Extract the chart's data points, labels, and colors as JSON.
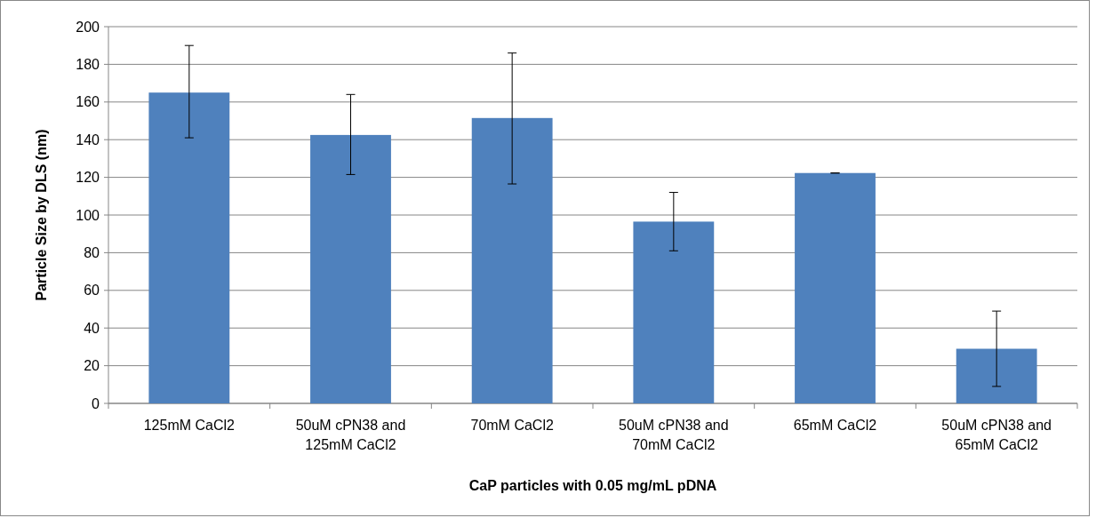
{
  "chart_data": {
    "type": "bar",
    "xlabel": "CaP particles with 0.05 mg/mL pDNA",
    "ylabel": "Particle Size by DLS (nm)",
    "categories": [
      "125mM CaCl2",
      "50uM cPN38 and 125mM CaCl2",
      "70mM CaCl2",
      "50uM cPN38 and 70mM CaCl2",
      "65mM CaCl2",
      "50uM cPN38 and 65mM CaCl2"
    ],
    "values": [
      165,
      142.5,
      151.5,
      96.5,
      122.3,
      29
    ],
    "errors": [
      [
        141,
        190
      ],
      [
        121.5,
        164
      ],
      [
        116.5,
        186
      ],
      [
        81,
        112
      ],
      0,
      [
        9,
        49
      ]
    ],
    "color": "#4f81bd",
    "ylim": [
      0,
      200
    ],
    "yticks": [
      0,
      20,
      40,
      60,
      80,
      100,
      120,
      140,
      160,
      180,
      200
    ],
    "grid": "y"
  }
}
